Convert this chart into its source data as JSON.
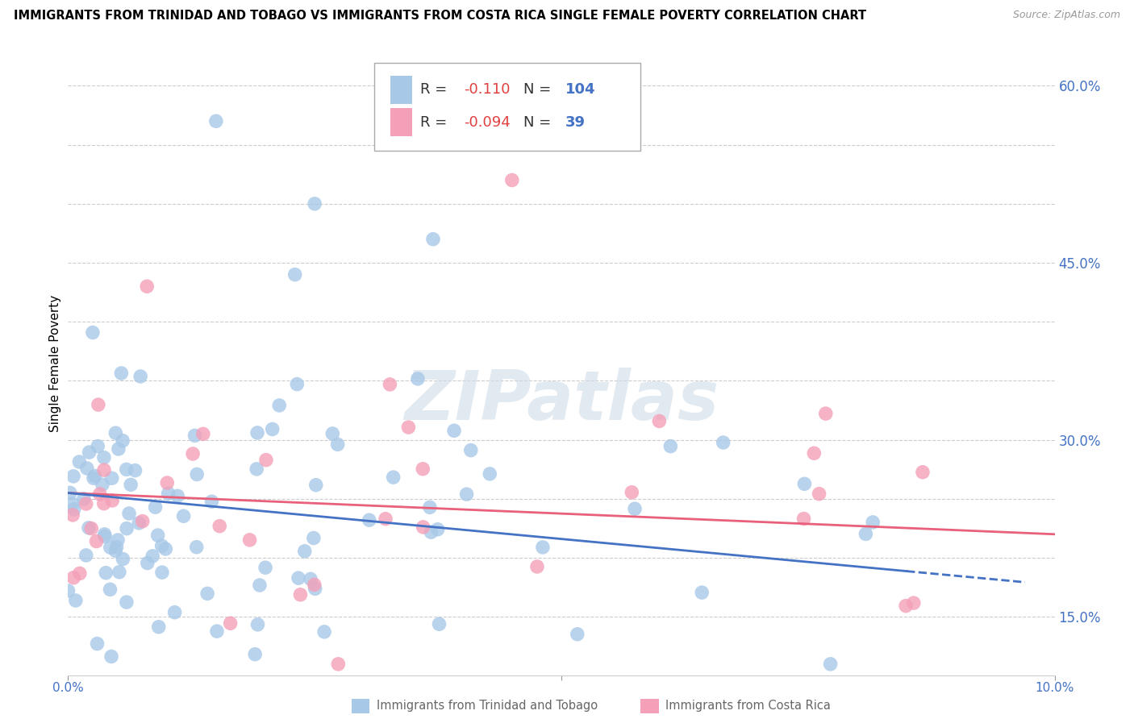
{
  "title": "IMMIGRANTS FROM TRINIDAD AND TOBAGO VS IMMIGRANTS FROM COSTA RICA SINGLE FEMALE POVERTY CORRELATION CHART",
  "source": "Source: ZipAtlas.com",
  "ylabel": "Single Female Poverty",
  "xlim": [
    0.0,
    0.1
  ],
  "ylim": [
    0.1,
    0.63
  ],
  "r_blue": -0.11,
  "n_blue": 104,
  "r_pink": -0.094,
  "n_pink": 39,
  "color_blue": "#a8c8e8",
  "color_pink": "#f4a0b8",
  "line_blue": "#4472c4",
  "line_pink": "#e8607a",
  "ytick_positions": [
    0.15,
    0.2,
    0.25,
    0.3,
    0.35,
    0.4,
    0.45,
    0.5,
    0.55,
    0.6
  ],
  "ytick_labels": [
    "15.0%",
    "",
    "",
    "30.0%",
    "",
    "",
    "45.0%",
    "",
    "",
    "60.0%"
  ],
  "watermark_text": "ZIPatlas",
  "bottom_label_blue": "Immigrants from Trinidad and Tobago",
  "bottom_label_pink": "Immigrants from Costa Rica"
}
